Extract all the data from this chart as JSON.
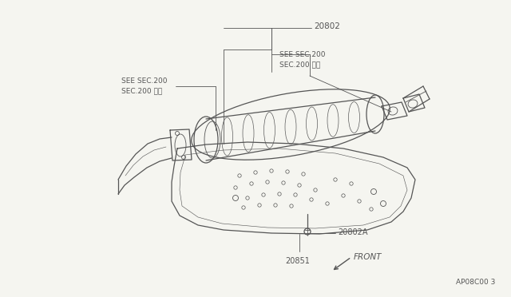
{
  "bg_color": "#f5f5f0",
  "line_color": "#555555",
  "label_20802": "20802",
  "label_20802A": "20802A",
  "label_20851": "20851",
  "label_sec200_left": "SEE SEC.200\nSEC.200 参照",
  "label_sec200_right": "SEE SEC.200\nSEC.200 参照",
  "label_front": "FRONT",
  "label_bottom_right": "AP08C00 3",
  "font_size_labels": 7,
  "font_size_front": 7.5,
  "font_size_bottom": 6.5
}
